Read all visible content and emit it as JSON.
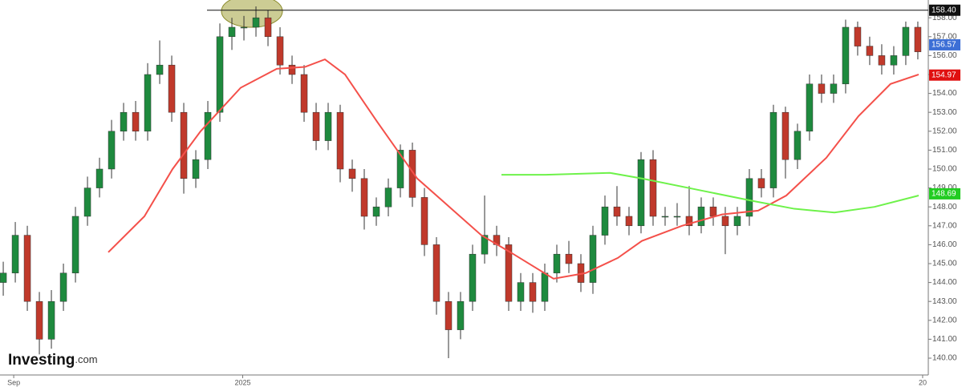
{
  "chart_data": {
    "type": "candlestick",
    "brand": "Investing",
    "brand_suffix": ".com",
    "up_color": "#1e8a3e",
    "down_color": "#c0392b",
    "open": [
      144,
      144.5,
      146.5,
      143,
      141,
      143,
      144.5,
      147.5,
      149,
      150,
      152,
      153,
      152,
      155,
      155.5,
      153,
      149.5,
      150.5,
      153,
      157,
      157.5,
      157.5,
      158,
      157,
      155.5,
      155,
      153,
      151.5,
      153,
      150,
      149.5,
      147.5,
      148,
      149,
      151,
      148.5,
      146,
      143,
      141.5,
      143,
      145.5,
      146.5,
      146,
      143,
      144,
      143,
      144.5,
      145.5,
      145,
      144,
      146.5,
      148,
      147.5,
      147,
      150.5,
      147.5,
      147.5,
      147.5,
      147,
      148,
      147.5,
      147,
      147.5,
      149.5,
      149,
      153,
      150.5,
      152,
      154.5,
      154,
      154.5,
      157.5,
      156.5,
      156,
      155.5,
      156,
      157.5
    ],
    "high": [
      145.1,
      147.2,
      147,
      143.5,
      143.6,
      145,
      148,
      149.6,
      150.6,
      152.6,
      153.5,
      153.6,
      155.6,
      156.8,
      156,
      153.5,
      151,
      153.6,
      157.7,
      158,
      158.1,
      158.6,
      158.4,
      157.5,
      156,
      155.5,
      153.5,
      153.5,
      153.4,
      150.5,
      150,
      148.5,
      149.5,
      151.3,
      151.4,
      149,
      146.4,
      143.5,
      143.5,
      146,
      148.6,
      147,
      146.4,
      144.5,
      144.5,
      145,
      146,
      146.2,
      145.5,
      147,
      148.6,
      149.1,
      148,
      150.9,
      151,
      148,
      148.2,
      149.1,
      148.5,
      148.5,
      148,
      148,
      150,
      150,
      153.4,
      153.3,
      152.4,
      155,
      155,
      155,
      157.9,
      157.8,
      157,
      156.6,
      156.5,
      157.8,
      157.8
    ],
    "low": [
      143.3,
      144,
      142.5,
      140.2,
      140.5,
      142.5,
      144,
      147,
      148.5,
      149.5,
      151.5,
      151.5,
      151.5,
      154.5,
      152.5,
      148.7,
      149,
      150,
      152.5,
      156.3,
      156.8,
      157,
      156.5,
      155,
      154.5,
      152.5,
      151,
      151,
      149.3,
      148.8,
      146.8,
      147,
      147.5,
      148.5,
      148,
      145.4,
      142.3,
      140,
      141,
      142.5,
      145,
      145.4,
      142.5,
      142.5,
      142.4,
      142.5,
      144,
      144.5,
      143.5,
      143.4,
      146,
      147,
      146.5,
      146.6,
      147,
      147,
      147,
      146.5,
      146.6,
      147,
      145.5,
      146.5,
      147,
      148.5,
      148.5,
      149.5,
      150,
      151.5,
      153.5,
      153.5,
      154,
      156,
      155.5,
      155,
      155,
      155.5,
      155.8
    ],
    "close": [
      144.5,
      146.5,
      143,
      141,
      143,
      144.5,
      147.5,
      149,
      150,
      152,
      153,
      152,
      155,
      155.5,
      153,
      149.5,
      150.5,
      153,
      157,
      157.5,
      157.5,
      158,
      157,
      155.5,
      155,
      153,
      151.5,
      153,
      150,
      149.5,
      147.5,
      148,
      149,
      151,
      148.5,
      146,
      143,
      141.5,
      143,
      145.5,
      146.5,
      146,
      143,
      144,
      143,
      144.5,
      145.5,
      145,
      144,
      146.5,
      148,
      147.5,
      147,
      150.5,
      147.5,
      147.5,
      147.5,
      147,
      148,
      147.5,
      147,
      147.5,
      149.5,
      149,
      153,
      150.5,
      152,
      154.5,
      154,
      154.5,
      157.5,
      156.5,
      156,
      155.5,
      156,
      157.5,
      156.2
    ],
    "series": [
      {
        "color": "#f4504a",
        "x": [
          8.73,
          11.73,
          14.07,
          16.4,
          19.73,
          22.73,
          25.07,
          26.73,
          28.4,
          31.07,
          34.4,
          37.07,
          39.73,
          42.4,
          45.73,
          48.4,
          51.07,
          53.07,
          56.4,
          59.73,
          62.73,
          65.07,
          68.4,
          71.07,
          73.73,
          76.07
        ],
        "values": [
          145.6,
          147.5,
          150,
          152,
          154.3,
          155.3,
          155.4,
          155.8,
          155,
          152.5,
          149.5,
          148,
          146.5,
          145.5,
          144.2,
          144.5,
          145.3,
          146.2,
          147,
          147.6,
          147.8,
          148.6,
          150.6,
          152.8,
          154.5,
          155
        ]
      },
      {
        "color": "#6ef24a",
        "x": [
          41.4,
          45.07,
          50.4,
          53.07,
          57.73,
          62.4,
          65.73,
          69.07,
          72.4,
          76.07
        ],
        "values": [
          149.7,
          149.7,
          149.8,
          149.5,
          148.9,
          148.3,
          147.9,
          147.7,
          148,
          148.6
        ]
      }
    ],
    "price_lines": [
      {
        "value": 158.4,
        "label": "158.40",
        "color": "#111111"
      },
      {
        "value": 156.57,
        "label": "156.57",
        "color": "#3d6fd6"
      },
      {
        "value": 154.97,
        "label": "154.97",
        "color": "#e01010"
      },
      {
        "value": 148.69,
        "label": "148.69",
        "color": "#22cc22"
      }
    ],
    "xlim": [
      -0.27,
      76.87
    ],
    "ylim": [
      139.11,
      158.94
    ],
    "xticks": [
      {
        "value": 0.87,
        "label": "Sep"
      },
      {
        "value": 19.9,
        "label": "2025"
      },
      {
        "value": 76.4,
        "label": "20"
      }
    ],
    "yticks": [
      {
        "value": 140,
        "label": "140.00"
      },
      {
        "value": 141,
        "label": "141.00"
      },
      {
        "value": 142,
        "label": "142.00"
      },
      {
        "value": 143,
        "label": "143.00"
      },
      {
        "value": 144,
        "label": "144.00"
      },
      {
        "value": 145,
        "label": "145.00"
      },
      {
        "value": 146,
        "label": "146.00"
      },
      {
        "value": 147,
        "label": "147.00"
      },
      {
        "value": 148,
        "label": "148.00"
      },
      {
        "value": 149,
        "label": "149.00"
      },
      {
        "value": 150,
        "label": "150.00"
      },
      {
        "value": 151,
        "label": "151.00"
      },
      {
        "value": 152,
        "label": "152.00"
      },
      {
        "value": 153,
        "label": "153.00"
      },
      {
        "value": 154,
        "label": "154.00"
      },
      {
        "value": 155,
        "label": "155.00"
      },
      {
        "value": 156,
        "label": "156.00"
      },
      {
        "value": 157,
        "label": "157.00"
      },
      {
        "value": 158,
        "label": "158.00"
      }
    ]
  }
}
